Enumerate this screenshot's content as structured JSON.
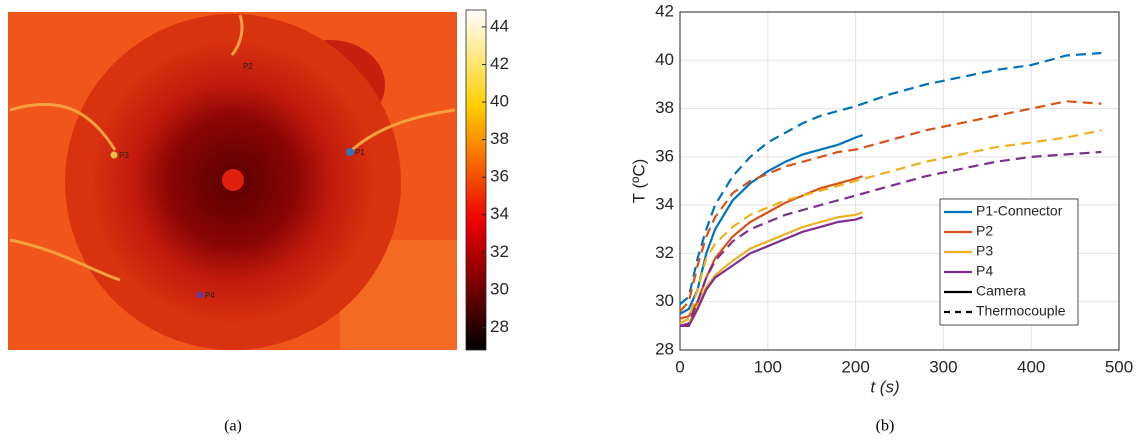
{
  "chart_data": [
    {
      "type": "image",
      "caption": "(a)",
      "colormap": "hot",
      "point_labels": [
        "P1",
        "P2",
        "P3",
        "P4"
      ],
      "colorbar": {
        "ylim": [
          26.8,
          44.9
        ],
        "yticks": [
          28,
          30,
          32,
          34,
          36,
          38,
          40,
          42,
          44
        ]
      }
    },
    {
      "type": "line",
      "caption": "(b)",
      "xlabel": "t (s)",
      "ylabel": "T (ºC)",
      "xlim": [
        0,
        500
      ],
      "xticks": [
        0,
        100,
        200,
        300,
        400,
        500
      ],
      "ylim": [
        28,
        42
      ],
      "yticks": [
        28,
        30,
        32,
        34,
        36,
        38,
        40,
        42
      ],
      "grid": true,
      "legend": "lower right",
      "camera_x": [
        0,
        10,
        20,
        30,
        40,
        60,
        80,
        100,
        120,
        140,
        160,
        180,
        200,
        208
      ],
      "thermocouple_x": [
        0,
        10,
        20,
        30,
        40,
        60,
        80,
        100,
        120,
        140,
        160,
        180,
        200,
        240,
        280,
        320,
        360,
        400,
        440,
        480
      ],
      "styles": [
        {
          "name": "Camera",
          "dash": "solid"
        },
        {
          "name": "Thermocouple",
          "dash": "dashed"
        }
      ],
      "series": [
        {
          "name": "P1-Connector",
          "color": "#0072BD",
          "camera": [
            29.5,
            29.7,
            30.5,
            32.0,
            33.0,
            34.2,
            34.9,
            35.4,
            35.8,
            36.1,
            36.3,
            36.5,
            36.8,
            36.9
          ],
          "thermocouple": [
            29.9,
            30.2,
            31.8,
            33.0,
            34.0,
            35.2,
            36.0,
            36.6,
            37.0,
            37.4,
            37.7,
            37.9,
            38.1,
            38.6,
            39.0,
            39.3,
            39.6,
            39.8,
            40.2,
            40.3
          ]
        },
        {
          "name": "P2",
          "color": "#D95319",
          "camera": [
            29.3,
            29.4,
            30.0,
            31.0,
            31.8,
            32.7,
            33.3,
            33.7,
            34.1,
            34.4,
            34.7,
            34.9,
            35.1,
            35.2
          ],
          "thermocouple": [
            29.6,
            30.0,
            31.5,
            32.7,
            33.5,
            34.5,
            35.0,
            35.3,
            35.6,
            35.8,
            36.0,
            36.2,
            36.3,
            36.7,
            37.1,
            37.4,
            37.7,
            38.0,
            38.3,
            38.2
          ]
        },
        {
          "name": "P3",
          "color": "#EDB120",
          "camera": [
            29.0,
            29.1,
            29.8,
            30.6,
            31.1,
            31.7,
            32.2,
            32.5,
            32.8,
            33.1,
            33.3,
            33.5,
            33.6,
            33.7
          ],
          "thermocouple": [
            29.1,
            29.3,
            30.5,
            31.8,
            32.4,
            33.1,
            33.6,
            33.9,
            34.2,
            34.4,
            34.6,
            34.8,
            35.0,
            35.4,
            35.8,
            36.1,
            36.4,
            36.6,
            36.8,
            37.1
          ]
        },
        {
          "name": "P4",
          "color": "#7E2F8E",
          "camera": [
            29.0,
            29.0,
            29.7,
            30.5,
            31.0,
            31.5,
            32.0,
            32.3,
            32.6,
            32.9,
            33.1,
            33.3,
            33.4,
            33.5
          ],
          "thermocouple": [
            29.0,
            29.1,
            30.0,
            31.0,
            31.7,
            32.5,
            33.0,
            33.3,
            33.6,
            33.8,
            34.0,
            34.2,
            34.4,
            34.8,
            35.2,
            35.5,
            35.8,
            36.0,
            36.1,
            36.2
          ]
        }
      ]
    }
  ]
}
